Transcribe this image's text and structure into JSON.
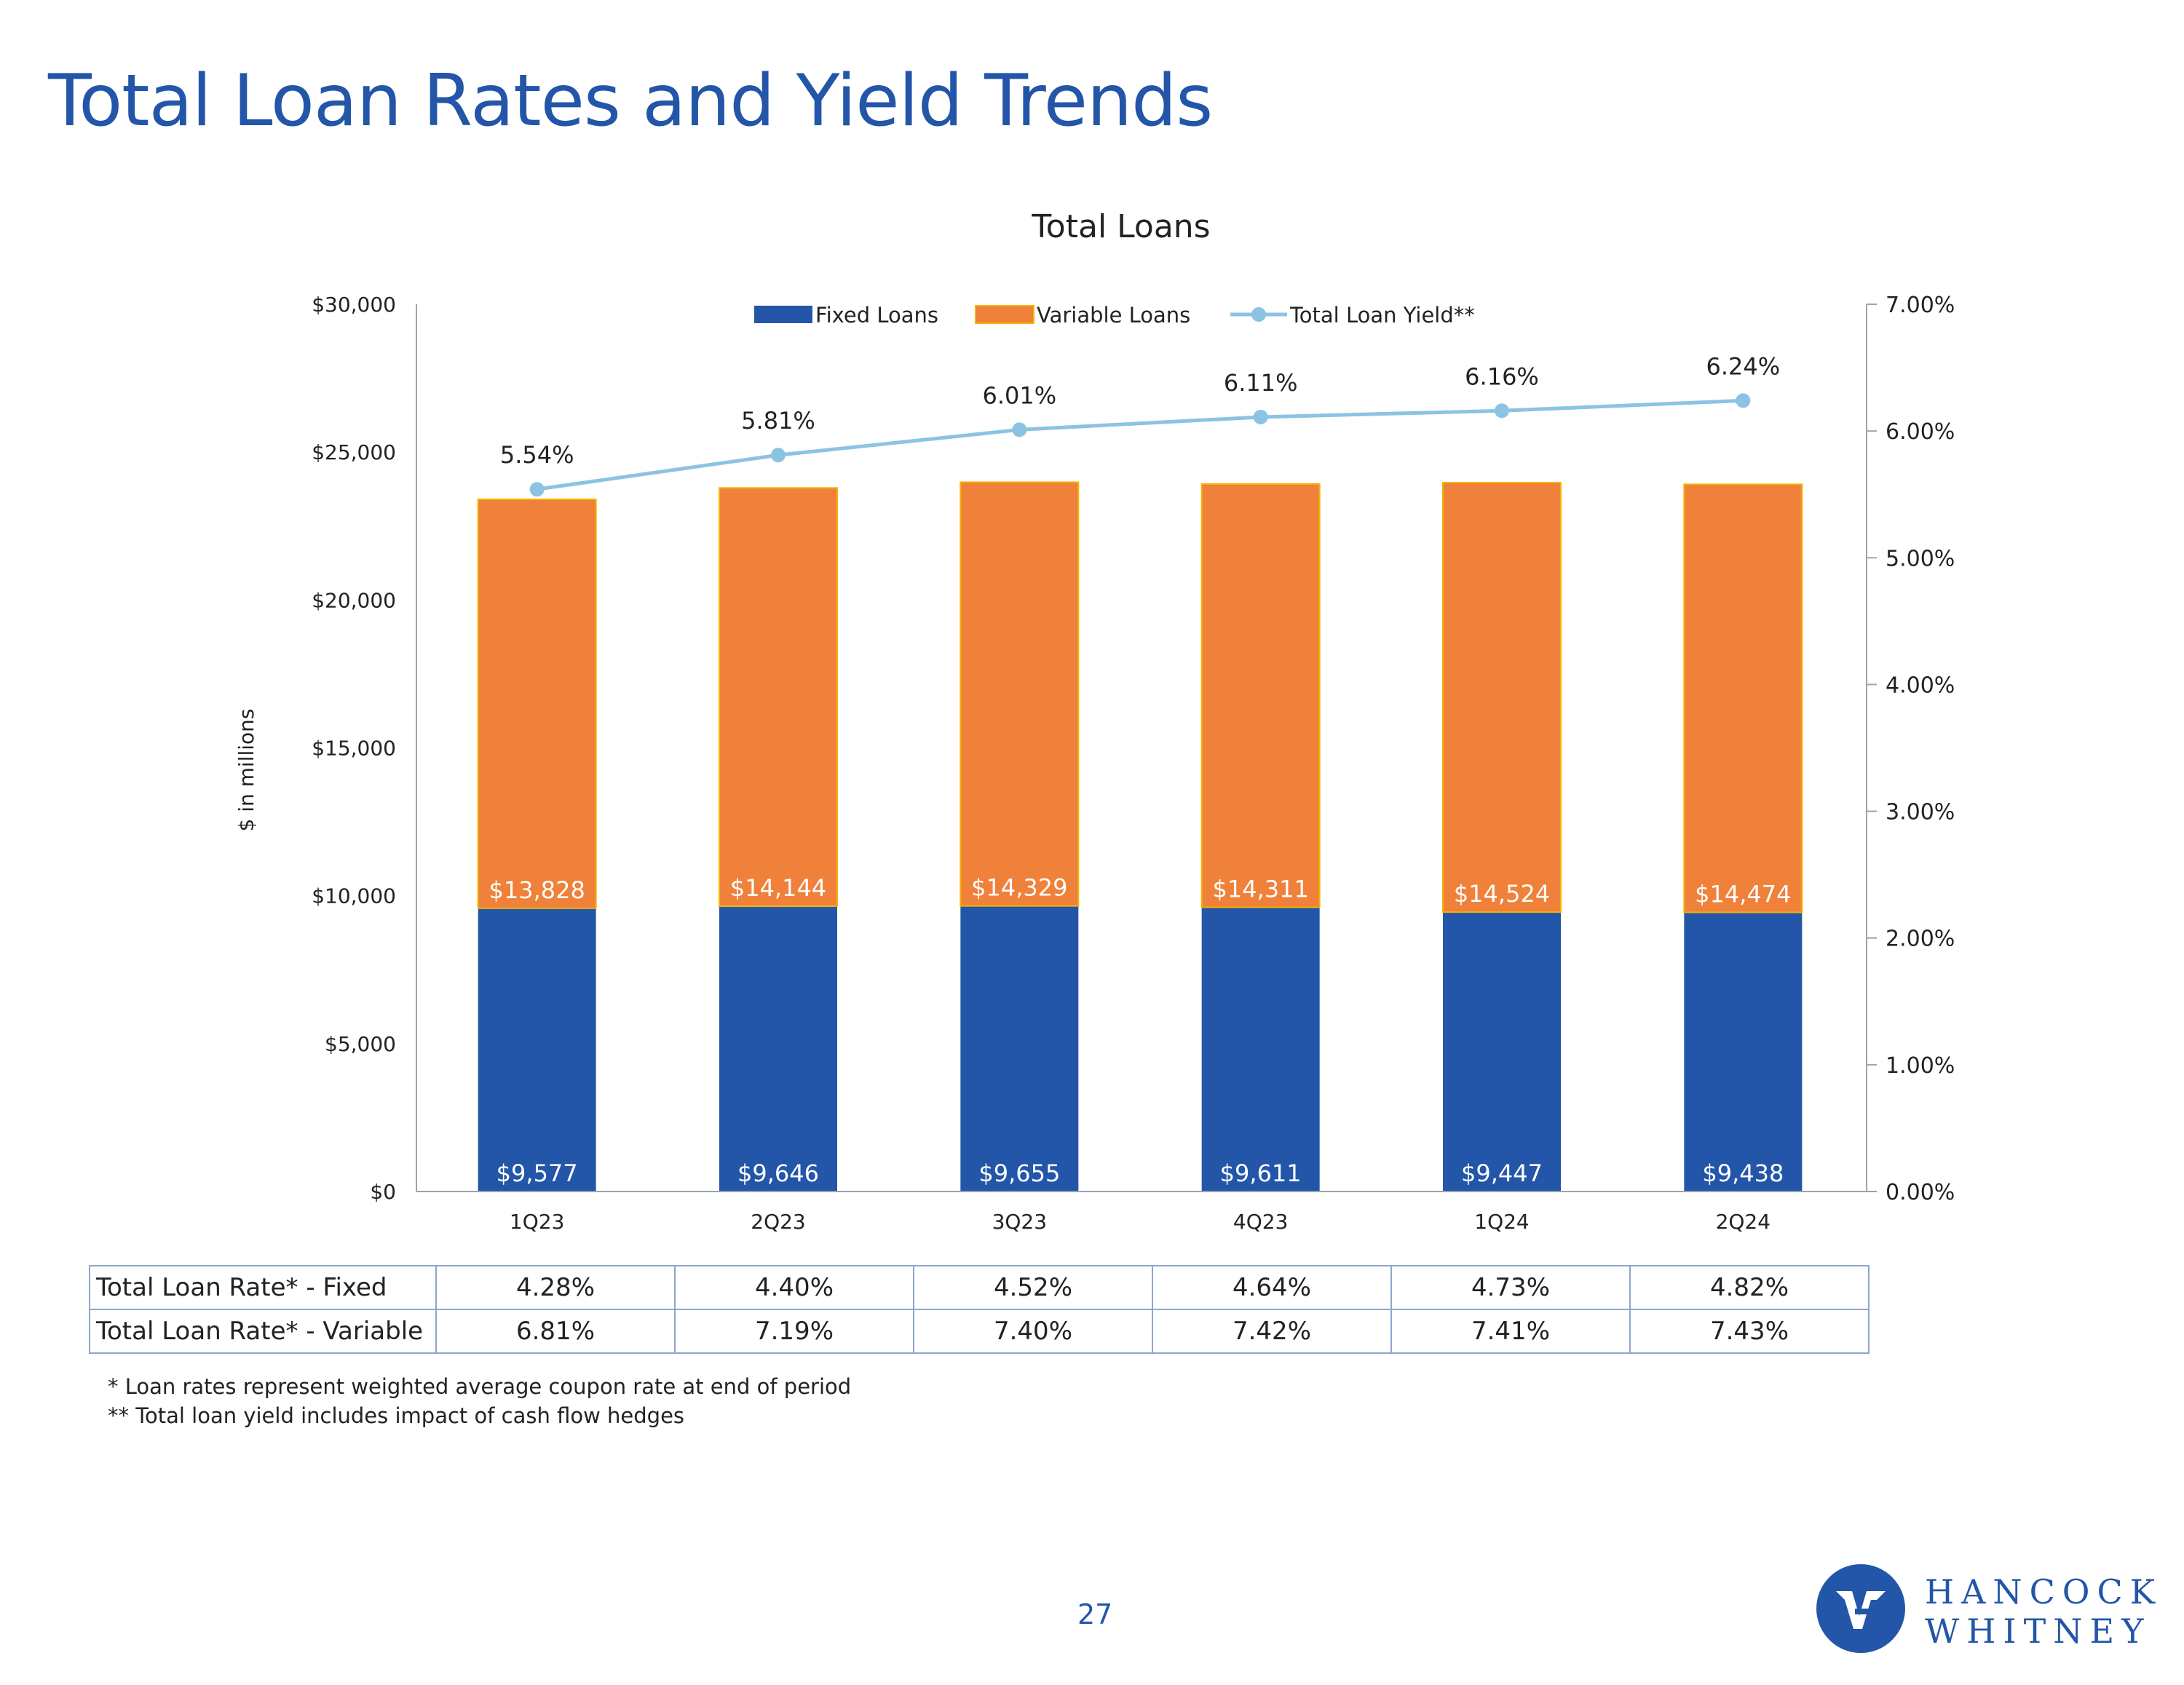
{
  "page": {
    "title": "Total Loan Rates and Yield Trends",
    "page_number": "27",
    "brand_line1": "HANCOCK",
    "brand_line2": "WHITNEY"
  },
  "colors": {
    "fixed": "#2356A8",
    "variable": "#F0813A",
    "yield": "#8CC3E3",
    "title": "#2356A8"
  },
  "chart_data": {
    "type": "bar",
    "stacked": true,
    "title": "Total Loans",
    "ylabel": "$ in millions",
    "categories": [
      "1Q23",
      "2Q23",
      "3Q23",
      "4Q23",
      "1Q24",
      "2Q24"
    ],
    "ylim": [
      0,
      30000
    ],
    "yticks": [
      "$0",
      "$5,000",
      "$10,000",
      "$15,000",
      "$20,000",
      "$25,000",
      "$30,000"
    ],
    "y2lim": [
      0,
      7
    ],
    "y2ticks": [
      "0.00%",
      "1.00%",
      "2.00%",
      "3.00%",
      "4.00%",
      "5.00%",
      "6.00%",
      "7.00%"
    ],
    "series": [
      {
        "name": "Fixed Loans",
        "type": "bar",
        "values": [
          9577,
          9646,
          9655,
          9611,
          9447,
          9438
        ],
        "labels": [
          "$9,577",
          "$9,646",
          "$9,655",
          "$9,611",
          "$9,447",
          "$9,438"
        ]
      },
      {
        "name": "Variable Loans",
        "type": "bar",
        "values": [
          13828,
          14144,
          14329,
          14311,
          14524,
          14474
        ],
        "labels": [
          "$13,828",
          "$14,144",
          "$14,329",
          "$14,311",
          "$14,524",
          "$14,474"
        ]
      },
      {
        "name": "Total Loan Yield**",
        "type": "line",
        "axis": "right",
        "values": [
          5.54,
          5.81,
          6.01,
          6.11,
          6.16,
          6.24
        ],
        "labels": [
          "5.54%",
          "5.81%",
          "6.01%",
          "6.11%",
          "6.16%",
          "6.24%"
        ]
      }
    ],
    "legend": "top-center"
  },
  "rates_table": {
    "rows": [
      {
        "label": "Total Loan Rate* - Fixed",
        "values": [
          "4.28%",
          "4.40%",
          "4.52%",
          "4.64%",
          "4.73%",
          "4.82%"
        ]
      },
      {
        "label": "Total Loan Rate* - Variable",
        "values": [
          "6.81%",
          "7.19%",
          "7.40%",
          "7.42%",
          "7.41%",
          "7.43%"
        ]
      }
    ]
  },
  "footnotes": [
    "* Loan rates represent weighted average coupon rate at end of period",
    "** Total loan yield includes impact of cash flow hedges"
  ]
}
